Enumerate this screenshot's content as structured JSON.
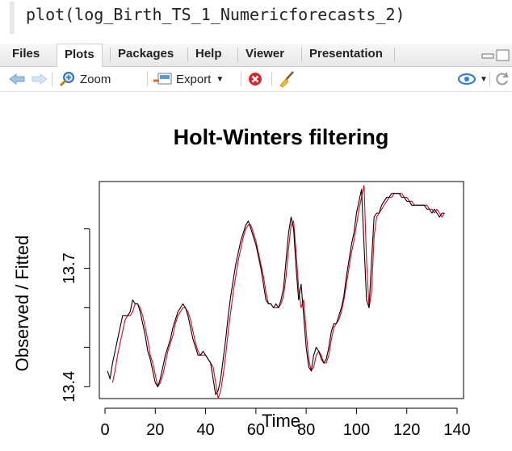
{
  "console": {
    "command": "plot(log_Birth_TS_1_Numericforecasts_2)"
  },
  "tabs": [
    {
      "label": "Files",
      "active": false
    },
    {
      "label": "Plots",
      "active": true
    },
    {
      "label": "Packages",
      "active": false
    },
    {
      "label": "Help",
      "active": false
    },
    {
      "label": "Viewer",
      "active": false
    },
    {
      "label": "Presentation",
      "active": false
    }
  ],
  "toolbar": {
    "zoom_label": "Zoom",
    "export_label": "Export"
  },
  "colors": {
    "observed": "#000000",
    "fitted": "#e8001c",
    "toolbar_blue": "#3a7bd5"
  },
  "chart_data": {
    "type": "line",
    "title": "Holt-Winters filtering",
    "xlabel": "Time",
    "ylabel": "Observed / Fitted",
    "xlim": [
      0,
      140
    ],
    "ylim": [
      13.37,
      13.92
    ],
    "xticks": [
      0,
      20,
      40,
      60,
      80,
      100,
      120,
      140
    ],
    "yticks": [
      13.4,
      13.7
    ],
    "grid": false,
    "series": [
      {
        "points": [
          [
            1,
            13.44
          ],
          [
            2,
            13.42
          ],
          [
            3,
            13.46
          ],
          [
            4,
            13.49
          ],
          [
            5,
            13.52
          ],
          [
            6,
            13.55
          ],
          [
            7,
            13.58
          ],
          [
            8,
            13.58
          ],
          [
            9,
            13.58
          ],
          [
            10,
            13.59
          ],
          [
            11,
            13.62
          ],
          [
            12,
            13.61
          ],
          [
            13,
            13.61
          ],
          [
            14,
            13.59
          ],
          [
            15,
            13.56
          ],
          [
            16,
            13.53
          ],
          [
            17,
            13.49
          ],
          [
            18,
            13.47
          ],
          [
            19,
            13.44
          ],
          [
            20,
            13.41
          ],
          [
            21,
            13.4
          ],
          [
            22,
            13.42
          ],
          [
            23,
            13.45
          ],
          [
            24,
            13.48
          ],
          [
            25,
            13.5
          ],
          [
            26,
            13.52
          ],
          [
            27,
            13.55
          ],
          [
            28,
            13.57
          ],
          [
            29,
            13.59
          ],
          [
            30,
            13.6
          ],
          [
            31,
            13.61
          ],
          [
            32,
            13.6
          ],
          [
            33,
            13.58
          ],
          [
            34,
            13.55
          ],
          [
            35,
            13.52
          ],
          [
            36,
            13.5
          ],
          [
            37,
            13.48
          ],
          [
            38,
            13.48
          ],
          [
            39,
            13.49
          ],
          [
            40,
            13.48
          ],
          [
            41,
            13.47
          ],
          [
            42,
            13.46
          ],
          [
            43,
            13.42
          ],
          [
            44,
            13.38
          ],
          [
            45,
            13.39
          ],
          [
            46,
            13.42
          ],
          [
            47,
            13.47
          ],
          [
            48,
            13.52
          ],
          [
            49,
            13.58
          ],
          [
            50,
            13.63
          ],
          [
            51,
            13.67
          ],
          [
            52,
            13.71
          ],
          [
            53,
            13.74
          ],
          [
            54,
            13.77
          ],
          [
            55,
            13.79
          ],
          [
            56,
            13.81
          ],
          [
            57,
            13.82
          ],
          [
            58,
            13.8
          ],
          [
            59,
            13.78
          ],
          [
            60,
            13.76
          ],
          [
            61,
            13.73
          ],
          [
            62,
            13.7
          ],
          [
            63,
            13.66
          ],
          [
            64,
            13.62
          ],
          [
            65,
            13.61
          ],
          [
            66,
            13.61
          ],
          [
            67,
            13.6
          ],
          [
            68,
            13.61
          ],
          [
            69,
            13.6
          ],
          [
            70,
            13.62
          ],
          [
            71,
            13.65
          ],
          [
            72,
            13.72
          ],
          [
            73,
            13.79
          ],
          [
            74,
            13.83
          ],
          [
            75,
            13.8
          ],
          [
            76,
            13.7
          ],
          [
            77,
            13.62
          ],
          [
            78,
            13.66
          ],
          [
            79,
            13.58
          ],
          [
            80,
            13.5
          ],
          [
            81,
            13.45
          ],
          [
            82,
            13.44
          ],
          [
            83,
            13.48
          ],
          [
            84,
            13.5
          ],
          [
            85,
            13.49
          ],
          [
            86,
            13.47
          ],
          [
            87,
            13.46
          ],
          [
            88,
            13.47
          ],
          [
            89,
            13.5
          ],
          [
            90,
            13.54
          ],
          [
            91,
            13.56
          ],
          [
            92,
            13.56
          ],
          [
            93,
            13.58
          ],
          [
            94,
            13.6
          ],
          [
            95,
            13.63
          ],
          [
            96,
            13.68
          ],
          [
            97,
            13.72
          ],
          [
            98,
            13.76
          ],
          [
            99,
            13.79
          ],
          [
            100,
            13.84
          ],
          [
            101,
            13.87
          ],
          [
            102,
            13.9
          ],
          [
            103,
            13.76
          ],
          [
            104,
            13.62
          ],
          [
            105,
            13.6
          ],
          [
            106,
            13.72
          ],
          [
            107,
            13.83
          ],
          [
            108,
            13.84
          ],
          [
            109,
            13.84
          ],
          [
            110,
            13.86
          ],
          [
            111,
            13.87
          ],
          [
            112,
            13.88
          ],
          [
            113,
            13.88
          ],
          [
            114,
            13.89
          ],
          [
            115,
            13.89
          ],
          [
            116,
            13.89
          ],
          [
            117,
            13.89
          ],
          [
            118,
            13.88
          ],
          [
            119,
            13.88
          ],
          [
            120,
            13.87
          ],
          [
            121,
            13.87
          ],
          [
            122,
            13.86
          ],
          [
            123,
            13.86
          ],
          [
            124,
            13.86
          ],
          [
            125,
            13.86
          ],
          [
            126,
            13.86
          ],
          [
            127,
            13.86
          ],
          [
            128,
            13.85
          ],
          [
            129,
            13.85
          ],
          [
            130,
            13.84
          ],
          [
            131,
            13.85
          ],
          [
            132,
            13.84
          ],
          [
            133,
            13.83
          ],
          [
            134,
            13.84
          ],
          [
            135,
            13.84
          ]
        ]
      },
      {
        "points": [
          [
            3,
            13.41
          ],
          [
            4,
            13.44
          ],
          [
            5,
            13.48
          ],
          [
            6,
            13.51
          ],
          [
            7,
            13.54
          ],
          [
            8,
            13.57
          ],
          [
            9,
            13.58
          ],
          [
            10,
            13.58
          ],
          [
            11,
            13.59
          ],
          [
            12,
            13.61
          ],
          [
            13,
            13.61
          ],
          [
            14,
            13.6
          ],
          [
            15,
            13.58
          ],
          [
            16,
            13.55
          ],
          [
            17,
            13.52
          ],
          [
            18,
            13.48
          ],
          [
            19,
            13.46
          ],
          [
            20,
            13.43
          ],
          [
            21,
            13.4
          ],
          [
            22,
            13.41
          ],
          [
            23,
            13.43
          ],
          [
            24,
            13.46
          ],
          [
            25,
            13.49
          ],
          [
            26,
            13.51
          ],
          [
            27,
            13.53
          ],
          [
            28,
            13.56
          ],
          [
            29,
            13.58
          ],
          [
            30,
            13.59
          ],
          [
            31,
            13.6
          ],
          [
            32,
            13.6
          ],
          [
            33,
            13.59
          ],
          [
            34,
            13.57
          ],
          [
            35,
            13.54
          ],
          [
            36,
            13.51
          ],
          [
            37,
            13.49
          ],
          [
            38,
            13.48
          ],
          [
            39,
            13.48
          ],
          [
            40,
            13.48
          ],
          [
            41,
            13.47
          ],
          [
            42,
            13.46
          ],
          [
            43,
            13.45
          ],
          [
            44,
            13.41
          ],
          [
            45,
            13.37
          ],
          [
            46,
            13.39
          ],
          [
            47,
            13.43
          ],
          [
            48,
            13.48
          ],
          [
            49,
            13.54
          ],
          [
            50,
            13.59
          ],
          [
            51,
            13.64
          ],
          [
            52,
            13.68
          ],
          [
            53,
            13.72
          ],
          [
            54,
            13.75
          ],
          [
            55,
            13.78
          ],
          [
            56,
            13.8
          ],
          [
            57,
            13.81
          ],
          [
            58,
            13.81
          ],
          [
            59,
            13.79
          ],
          [
            60,
            13.77
          ],
          [
            61,
            13.74
          ],
          [
            62,
            13.71
          ],
          [
            63,
            13.68
          ],
          [
            64,
            13.64
          ],
          [
            65,
            13.61
          ],
          [
            66,
            13.61
          ],
          [
            67,
            13.6
          ],
          [
            68,
            13.6
          ],
          [
            69,
            13.6
          ],
          [
            70,
            13.61
          ],
          [
            71,
            13.63
          ],
          [
            72,
            13.68
          ],
          [
            73,
            13.75
          ],
          [
            74,
            13.81
          ],
          [
            75,
            13.82
          ],
          [
            76,
            13.74
          ],
          [
            77,
            13.65
          ],
          [
            78,
            13.6
          ],
          [
            79,
            13.62
          ],
          [
            80,
            13.54
          ],
          [
            81,
            13.47
          ],
          [
            82,
            13.44
          ],
          [
            83,
            13.45
          ],
          [
            84,
            13.48
          ],
          [
            85,
            13.49
          ],
          [
            86,
            13.48
          ],
          [
            87,
            13.46
          ],
          [
            88,
            13.46
          ],
          [
            89,
            13.48
          ],
          [
            90,
            13.52
          ],
          [
            91,
            13.55
          ],
          [
            92,
            13.56
          ],
          [
            93,
            13.57
          ],
          [
            94,
            13.59
          ],
          [
            95,
            13.62
          ],
          [
            96,
            13.66
          ],
          [
            97,
            13.7
          ],
          [
            98,
            13.74
          ],
          [
            99,
            13.77
          ],
          [
            100,
            13.81
          ],
          [
            101,
            13.85
          ],
          [
            102,
            13.88
          ],
          [
            103,
            13.91
          ],
          [
            104,
            13.72
          ],
          [
            105,
            13.6
          ],
          [
            106,
            13.64
          ],
          [
            107,
            13.78
          ],
          [
            108,
            13.83
          ],
          [
            109,
            13.84
          ],
          [
            110,
            13.85
          ],
          [
            111,
            13.86
          ],
          [
            112,
            13.87
          ],
          [
            113,
            13.88
          ],
          [
            114,
            13.88
          ],
          [
            115,
            13.89
          ],
          [
            116,
            13.89
          ],
          [
            117,
            13.89
          ],
          [
            118,
            13.89
          ],
          [
            119,
            13.88
          ],
          [
            120,
            13.88
          ],
          [
            121,
            13.87
          ],
          [
            122,
            13.87
          ],
          [
            123,
            13.86
          ],
          [
            124,
            13.86
          ],
          [
            125,
            13.86
          ],
          [
            126,
            13.86
          ],
          [
            127,
            13.86
          ],
          [
            128,
            13.86
          ],
          [
            129,
            13.85
          ],
          [
            130,
            13.85
          ],
          [
            131,
            13.84
          ],
          [
            132,
            13.85
          ],
          [
            133,
            13.84
          ],
          [
            134,
            13.83
          ],
          [
            135,
            13.84
          ]
        ]
      }
    ]
  }
}
